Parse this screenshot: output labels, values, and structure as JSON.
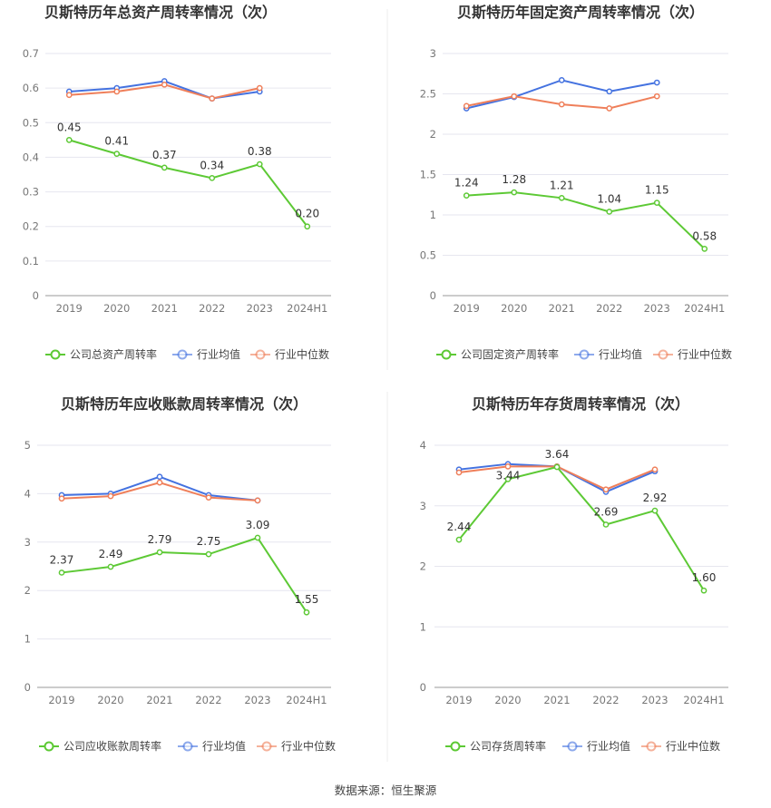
{
  "source": "数据来源：恒生聚源",
  "colors": {
    "company": "#5dc935",
    "industry_avg": "#4472e0",
    "industry_median": "#ef7f5a",
    "grid": "#e6e6ef",
    "axis": "#999999"
  },
  "chart_data": [
    {
      "type": "line",
      "title": "贝斯特历年总资产周转率情况（次）",
      "categories": [
        "2019",
        "2020",
        "2021",
        "2022",
        "2023",
        "2024H1"
      ],
      "ylim": [
        0,
        0.7
      ],
      "yticks": [
        "0",
        "0.1",
        "0.2",
        "0.3",
        "0.4",
        "0.5",
        "0.6",
        "0.7"
      ],
      "ytick_values": [
        0,
        0.1,
        0.2,
        0.3,
        0.4,
        0.5,
        0.6,
        0.7
      ],
      "series": [
        {
          "name": "公司总资产周转率",
          "key": "company",
          "values": [
            0.45,
            0.41,
            0.37,
            0.34,
            0.38,
            0.2
          ],
          "labels": [
            "0.45",
            "0.41",
            "0.37",
            "0.34",
            "0.38",
            "0.20"
          ]
        },
        {
          "name": "行业均值",
          "key": "industry_avg",
          "values": [
            0.59,
            0.6,
            0.62,
            0.57,
            0.59,
            null
          ]
        },
        {
          "name": "行业中位数",
          "key": "industry_median",
          "values": [
            0.58,
            0.59,
            0.61,
            0.57,
            0.6,
            null
          ]
        }
      ]
    },
    {
      "type": "line",
      "title": "贝斯特历年固定资产周转率情况（次）",
      "categories": [
        "2019",
        "2020",
        "2021",
        "2022",
        "2023",
        "2024H1"
      ],
      "ylim": [
        0,
        3
      ],
      "yticks": [
        "0",
        "0.5",
        "1",
        "1.5",
        "2",
        "2.5",
        "3"
      ],
      "ytick_values": [
        0,
        0.5,
        1,
        1.5,
        2,
        2.5,
        3
      ],
      "series": [
        {
          "name": "公司固定资产周转率",
          "key": "company",
          "values": [
            1.24,
            1.28,
            1.21,
            1.04,
            1.15,
            0.58
          ],
          "labels": [
            "1.24",
            "1.28",
            "1.21",
            "1.04",
            "1.15",
            "0.58"
          ]
        },
        {
          "name": "行业均值",
          "key": "industry_avg",
          "values": [
            2.32,
            2.46,
            2.67,
            2.53,
            2.64,
            null
          ]
        },
        {
          "name": "行业中位数",
          "key": "industry_median",
          "values": [
            2.35,
            2.47,
            2.37,
            2.32,
            2.47,
            null
          ]
        }
      ]
    },
    {
      "type": "line",
      "title": "贝斯特历年应收账款周转率情况（次）",
      "categories": [
        "2019",
        "2020",
        "2021",
        "2022",
        "2023",
        "2024H1"
      ],
      "ylim": [
        0,
        5
      ],
      "yticks": [
        "0",
        "1",
        "2",
        "3",
        "4",
        "5"
      ],
      "ytick_values": [
        0,
        1,
        2,
        3,
        4,
        5
      ],
      "series": [
        {
          "name": "公司应收账款周转率",
          "key": "company",
          "values": [
            2.37,
            2.49,
            2.79,
            2.75,
            3.09,
            1.55
          ],
          "labels": [
            "2.37",
            "2.49",
            "2.79",
            "2.75",
            "3.09",
            "1.55"
          ]
        },
        {
          "name": "行业均值",
          "key": "industry_avg",
          "values": [
            3.97,
            4.0,
            4.35,
            3.97,
            3.86,
            null
          ]
        },
        {
          "name": "行业中位数",
          "key": "industry_median",
          "values": [
            3.9,
            3.95,
            4.23,
            3.92,
            3.86,
            null
          ]
        }
      ]
    },
    {
      "type": "line",
      "title": "贝斯特历年存货周转率情况（次）",
      "categories": [
        "2019",
        "2020",
        "2021",
        "2022",
        "2023",
        "2024H1"
      ],
      "ylim": [
        0,
        4
      ],
      "yticks": [
        "0",
        "1",
        "2",
        "3",
        "4"
      ],
      "ytick_values": [
        0,
        1,
        2,
        3,
        4
      ],
      "series": [
        {
          "name": "公司存货周转率",
          "key": "company",
          "values": [
            2.44,
            3.44,
            3.64,
            2.69,
            2.92,
            1.6
          ],
          "labels": [
            "2.44",
            "3.44",
            "3.64",
            "2.69",
            "2.92",
            "1.60"
          ]
        },
        {
          "name": "行业均值",
          "key": "industry_avg",
          "values": [
            3.6,
            3.69,
            3.65,
            3.23,
            3.57,
            null
          ]
        },
        {
          "name": "行业中位数",
          "key": "industry_median",
          "values": [
            3.55,
            3.65,
            3.65,
            3.27,
            3.6,
            null
          ]
        }
      ]
    }
  ]
}
